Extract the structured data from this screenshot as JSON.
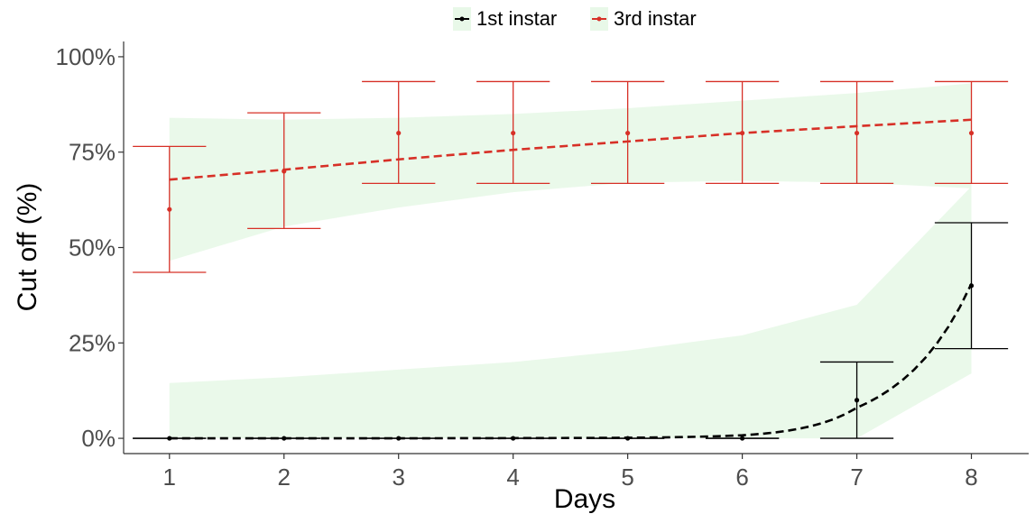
{
  "chart_data": {
    "type": "line",
    "xlabel": "Days",
    "ylabel": "Cut off (%)",
    "x": [
      1,
      2,
      3,
      4,
      5,
      6,
      7,
      8
    ],
    "x_ticks": [
      "1",
      "2",
      "3",
      "4",
      "5",
      "6",
      "7",
      "8"
    ],
    "y_ticks": [
      "0%",
      "25%",
      "50%",
      "75%",
      "100%"
    ],
    "y_tick_values": [
      0,
      25,
      50,
      75,
      100
    ],
    "xlim": [
      0.6,
      8.5
    ],
    "ylim": [
      -4,
      104
    ],
    "grid": false,
    "legend_position": "top",
    "series": [
      {
        "name": "1st instar",
        "color": "#000000",
        "band_color": "#e8f8e8",
        "mean": [
          0,
          0,
          0,
          0,
          0,
          0,
          10,
          40
        ],
        "ci_lower": [
          0,
          0,
          0,
          0,
          0,
          0,
          0,
          23.5
        ],
        "ci_upper": [
          0,
          0,
          0,
          0,
          0,
          0,
          20,
          56.5
        ],
        "fit": [
          0,
          0,
          0,
          0.05,
          0.15,
          0.8,
          8,
          40.5
        ],
        "band_lower": [
          0,
          0,
          0,
          0,
          0,
          0,
          0,
          17
        ],
        "band_upper": [
          14.5,
          16,
          18,
          20,
          23,
          27,
          35,
          66
        ]
      },
      {
        "name": "3rd instar",
        "color": "#d73027",
        "band_color": "#e8f8e8",
        "mean": [
          60,
          70,
          80,
          80,
          80,
          80,
          80,
          80
        ],
        "ci_lower": [
          43.5,
          55,
          66.8,
          66.8,
          66.8,
          66.8,
          66.8,
          66.8
        ],
        "ci_upper": [
          76.5,
          85.3,
          93.5,
          93.5,
          93.5,
          93.5,
          93.5,
          93.5
        ],
        "fit": [
          67.8,
          70.4,
          73.1,
          75.6,
          77.8,
          80,
          81.8,
          83.5
        ],
        "band_lower": [
          46.5,
          55.5,
          60.5,
          64.5,
          67,
          67.5,
          67,
          65.5
        ],
        "band_upper": [
          84,
          83.5,
          84,
          85,
          86.5,
          88.5,
          90.5,
          93
        ]
      }
    ]
  }
}
